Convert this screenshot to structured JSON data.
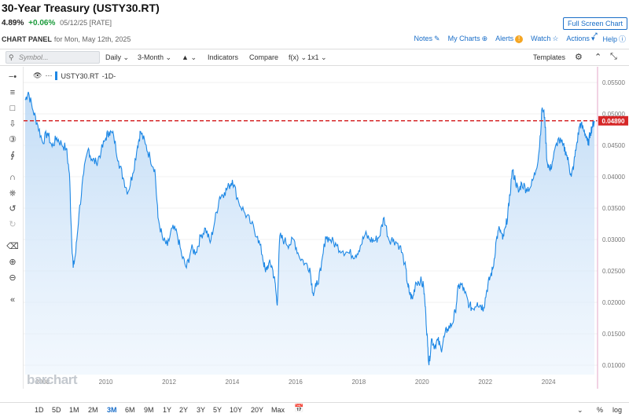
{
  "header": {
    "title": "30-Year Treasury (USTY30.RT)",
    "last": "4.89%",
    "change": "+0.06%",
    "meta": "05/12/25 [RATE]",
    "fullscreen_label": "Full Screen Chart",
    "panel_label": "CHART PANEL",
    "panel_date": "for Mon, May 12th, 2025"
  },
  "toplinks": {
    "notes": "Notes",
    "mycharts": "My Charts",
    "alerts": "Alerts",
    "alerts_badge": "!",
    "watch": "Watch",
    "actions": "Actions",
    "help": "Help"
  },
  "toolbar": {
    "symbol_placeholder": "Symbol...",
    "interval": "Daily",
    "period": "3-Month",
    "indicators": "Indicators",
    "compare": "Compare",
    "fx": "f(x)",
    "layout": "1x1",
    "templates": "Templates"
  },
  "legend": {
    "symbol": "USTY30.RT",
    "interval": "-1D-"
  },
  "watermark": "barchart",
  "range_buttons": [
    "1D",
    "5D",
    "1M",
    "2M",
    "3M",
    "6M",
    "9M",
    "1Y",
    "2Y",
    "3Y",
    "5Y",
    "10Y",
    "20Y",
    "Max"
  ],
  "range_active": "3M",
  "bottom_right": {
    "percent": "%",
    "log": "log"
  },
  "chart_data": {
    "type": "area",
    "series_color": "#1e88e5",
    "reference_line_color": "#d62728",
    "last_value_label": "0.04890",
    "y_ticks": [
      "0.05500",
      "0.05000",
      "0.04500",
      "0.04000",
      "0.03500",
      "0.03000",
      "0.02500",
      "0.02000",
      "0.01500",
      "0.01000"
    ],
    "x_ticks": [
      "2008",
      "2010",
      "2012",
      "2014",
      "2016",
      "2018",
      "2020",
      "2022",
      "2024"
    ],
    "ylim": [
      0.0085,
      0.0575
    ],
    "xlim": [
      2007.4,
      2025.55
    ],
    "reference_value": 0.0489,
    "points": [
      [
        2007.45,
        0.0522
      ],
      [
        2007.55,
        0.0535
      ],
      [
        2007.7,
        0.0505
      ],
      [
        2007.85,
        0.0482
      ],
      [
        2008.0,
        0.0455
      ],
      [
        2008.15,
        0.047
      ],
      [
        2008.3,
        0.0448
      ],
      [
        2008.45,
        0.0462
      ],
      [
        2008.6,
        0.0452
      ],
      [
        2008.75,
        0.0445
      ],
      [
        2008.85,
        0.0405
      ],
      [
        2008.92,
        0.03
      ],
      [
        2008.97,
        0.0255
      ],
      [
        2009.05,
        0.028
      ],
      [
        2009.15,
        0.034
      ],
      [
        2009.3,
        0.0405
      ],
      [
        2009.45,
        0.0445
      ],
      [
        2009.55,
        0.0428
      ],
      [
        2009.7,
        0.0422
      ],
      [
        2009.85,
        0.044
      ],
      [
        2010.0,
        0.0462
      ],
      [
        2010.1,
        0.0472
      ],
      [
        2010.25,
        0.0465
      ],
      [
        2010.4,
        0.0425
      ],
      [
        2010.55,
        0.0398
      ],
      [
        2010.7,
        0.0375
      ],
      [
        2010.85,
        0.0405
      ],
      [
        2011.0,
        0.0448
      ],
      [
        2011.1,
        0.0472
      ],
      [
        2011.25,
        0.0452
      ],
      [
        2011.4,
        0.043
      ],
      [
        2011.55,
        0.0412
      ],
      [
        2011.65,
        0.0335
      ],
      [
        2011.8,
        0.03
      ],
      [
        2011.95,
        0.029
      ],
      [
        2012.1,
        0.0318
      ],
      [
        2012.25,
        0.031
      ],
      [
        2012.4,
        0.0275
      ],
      [
        2012.55,
        0.0255
      ],
      [
        2012.7,
        0.0285
      ],
      [
        2012.85,
        0.028
      ],
      [
        2013.0,
        0.0305
      ],
      [
        2013.15,
        0.0318
      ],
      [
        2013.3,
        0.0295
      ],
      [
        2013.45,
        0.033
      ],
      [
        2013.6,
        0.0368
      ],
      [
        2013.75,
        0.0375
      ],
      [
        2013.9,
        0.0385
      ],
      [
        2014.0,
        0.0395
      ],
      [
        2014.2,
        0.036
      ],
      [
        2014.4,
        0.0342
      ],
      [
        2014.6,
        0.0325
      ],
      [
        2014.8,
        0.0305
      ],
      [
        2014.95,
        0.0275
      ],
      [
        2015.05,
        0.0248
      ],
      [
        2015.15,
        0.0262
      ],
      [
        2015.25,
        0.0258
      ],
      [
        2015.35,
        0.0232
      ],
      [
        2015.42,
        0.0195
      ],
      [
        2015.5,
        0.0305
      ],
      [
        2015.65,
        0.0298
      ],
      [
        2015.8,
        0.0292
      ],
      [
        2015.95,
        0.03
      ],
      [
        2016.1,
        0.0275
      ],
      [
        2016.3,
        0.0262
      ],
      [
        2016.45,
        0.0255
      ],
      [
        2016.55,
        0.0215
      ],
      [
        2016.65,
        0.0225
      ],
      [
        2016.8,
        0.025
      ],
      [
        2016.95,
        0.0305
      ],
      [
        2017.1,
        0.03
      ],
      [
        2017.3,
        0.029
      ],
      [
        2017.5,
        0.0282
      ],
      [
        2017.7,
        0.0278
      ],
      [
        2017.9,
        0.0275
      ],
      [
        2018.05,
        0.029
      ],
      [
        2018.2,
        0.0308
      ],
      [
        2018.35,
        0.03
      ],
      [
        2018.5,
        0.0298
      ],
      [
        2018.65,
        0.0305
      ],
      [
        2018.8,
        0.0335
      ],
      [
        2018.95,
        0.03
      ],
      [
        2019.1,
        0.03
      ],
      [
        2019.3,
        0.029
      ],
      [
        2019.45,
        0.0262
      ],
      [
        2019.55,
        0.0228
      ],
      [
        2019.6,
        0.0215
      ],
      [
        2019.7,
        0.0205
      ],
      [
        2019.8,
        0.0232
      ],
      [
        2019.95,
        0.0235
      ],
      [
        2020.05,
        0.0225
      ],
      [
        2020.12,
        0.018
      ],
      [
        2020.18,
        0.013
      ],
      [
        2020.22,
        0.01
      ],
      [
        2020.3,
        0.0142
      ],
      [
        2020.4,
        0.013
      ],
      [
        2020.5,
        0.014
      ],
      [
        2020.6,
        0.0125
      ],
      [
        2020.7,
        0.0145
      ],
      [
        2020.8,
        0.0158
      ],
      [
        2020.95,
        0.0165
      ],
      [
        2021.05,
        0.0185
      ],
      [
        2021.15,
        0.0225
      ],
      [
        2021.25,
        0.0228
      ],
      [
        2021.35,
        0.0215
      ],
      [
        2021.5,
        0.0195
      ],
      [
        2021.6,
        0.019
      ],
      [
        2021.75,
        0.02
      ],
      [
        2021.85,
        0.0195
      ],
      [
        2021.95,
        0.0192
      ],
      [
        2022.05,
        0.022
      ],
      [
        2022.15,
        0.024
      ],
      [
        2022.25,
        0.0255
      ],
      [
        2022.35,
        0.03
      ],
      [
        2022.45,
        0.0318
      ],
      [
        2022.55,
        0.03
      ],
      [
        2022.65,
        0.032
      ],
      [
        2022.75,
        0.0355
      ],
      [
        2022.85,
        0.041
      ],
      [
        2022.95,
        0.0395
      ],
      [
        2023.05,
        0.0375
      ],
      [
        2023.15,
        0.039
      ],
      [
        2023.3,
        0.038
      ],
      [
        2023.45,
        0.0385
      ],
      [
        2023.6,
        0.041
      ],
      [
        2023.7,
        0.044
      ],
      [
        2023.8,
        0.051
      ],
      [
        2023.88,
        0.0495
      ],
      [
        2023.95,
        0.0425
      ],
      [
        2024.05,
        0.041
      ],
      [
        2024.15,
        0.043
      ],
      [
        2024.3,
        0.046
      ],
      [
        2024.45,
        0.045
      ],
      [
        2024.55,
        0.044
      ],
      [
        2024.65,
        0.0418
      ],
      [
        2024.72,
        0.04
      ],
      [
        2024.8,
        0.042
      ],
      [
        2024.9,
        0.0455
      ],
      [
        2025.0,
        0.0485
      ],
      [
        2025.1,
        0.0475
      ],
      [
        2025.2,
        0.0465
      ],
      [
        2025.25,
        0.045
      ],
      [
        2025.32,
        0.047
      ],
      [
        2025.38,
        0.048
      ],
      [
        2025.45,
        0.0489
      ]
    ]
  }
}
